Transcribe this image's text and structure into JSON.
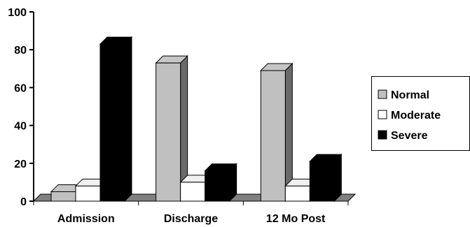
{
  "chart_data": {
    "type": "bar",
    "categories": [
      "Admission",
      "Discharge",
      "12 Mo Post"
    ],
    "series": [
      {
        "name": "Normal",
        "values": [
          5,
          73,
          69
        ],
        "color": "#c0c0c0"
      },
      {
        "name": "Moderate",
        "values": [
          8,
          10,
          8
        ],
        "color": "#ffffff"
      },
      {
        "name": "Severe",
        "values": [
          83,
          16,
          21
        ],
        "color": "#000000"
      }
    ],
    "ylim": [
      0,
      100
    ],
    "yticks": [
      0,
      20,
      40,
      60,
      80,
      100
    ],
    "grid": false,
    "legend_position": "right"
  }
}
